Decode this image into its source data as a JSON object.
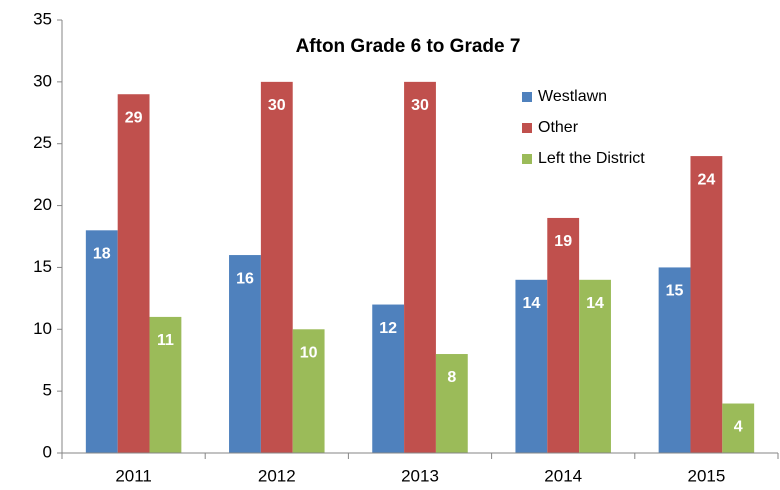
{
  "chart_data": {
    "type": "bar",
    "title": "Afton Grade 6 to Grade 7",
    "categories": [
      "2011",
      "2012",
      "2013",
      "2014",
      "2015"
    ],
    "series": [
      {
        "name": "Westlawn",
        "color": "#4f81bd",
        "values": [
          18,
          16,
          12,
          14,
          15
        ]
      },
      {
        "name": "Other",
        "color": "#c0504d",
        "values": [
          29,
          30,
          30,
          19,
          24
        ]
      },
      {
        "name": "Left the District",
        "color": "#9bbb59",
        "values": [
          11,
          10,
          8,
          14,
          4
        ]
      }
    ],
    "ylim": [
      0,
      35
    ],
    "yticks": [
      0,
      5,
      10,
      15,
      20,
      25,
      30,
      35
    ],
    "grid": false,
    "legend": "upper right"
  }
}
